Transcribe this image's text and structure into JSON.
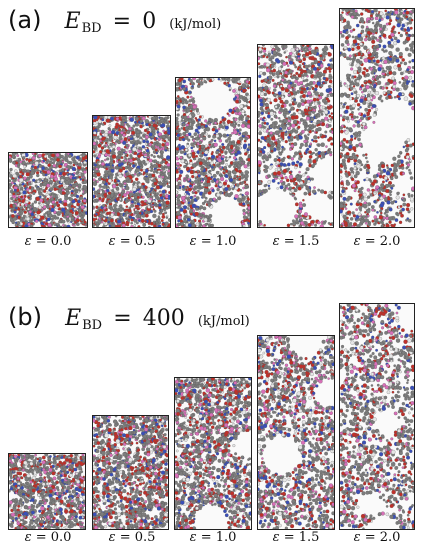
{
  "panels": [
    {
      "letter": "(a)",
      "ebd_symbol": "E",
      "ebd_subscript": "BD",
      "ebd_equals": "=",
      "ebd_value": "0",
      "ebd_unit": "(kJ/mol)",
      "strains": [
        {
          "symbol": "ε",
          "text": "= 0.0"
        },
        {
          "symbol": "ε",
          "text": "= 0.5"
        },
        {
          "symbol": "ε",
          "text": "= 1.0"
        },
        {
          "symbol": "ε",
          "text": "= 1.5"
        },
        {
          "symbol": "ε",
          "text": "= 2.0"
        }
      ]
    },
    {
      "letter": "(b)",
      "ebd_symbol": "E",
      "ebd_subscript": "BD",
      "ebd_equals": "=",
      "ebd_value": "400",
      "ebd_unit": "(kJ/mol)",
      "strains": [
        {
          "symbol": "ε",
          "text": "= 0.0"
        },
        {
          "symbol": "ε",
          "text": "= 0.5"
        },
        {
          "symbol": "ε",
          "text": "= 1.0"
        },
        {
          "symbol": "ε",
          "text": "= 1.5"
        },
        {
          "symbol": "ε",
          "text": "= 2.0"
        }
      ]
    }
  ],
  "atom_colors": {
    "carbon": "#7d7d7d",
    "oxygen": "#c0302a",
    "nitrogen": "#3a4fb8",
    "hydrogen": "#e6e6e6",
    "highlight": "#d86fb8"
  }
}
